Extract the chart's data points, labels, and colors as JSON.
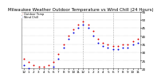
{
  "title": "Milwaukee Weather Outdoor Temperature vs Wind Chill (24 Hours)",
  "title_fontsize": 4.0,
  "background_color": "#ffffff",
  "legend_labels": [
    "Outdoor Temp",
    "Wind Chill"
  ],
  "legend_colors": [
    "#cc0000",
    "#0000cc"
  ],
  "vline_positions": [
    6,
    12,
    18
  ],
  "xlim": [
    -0.5,
    23.5
  ],
  "ylim": [
    20,
    55
  ],
  "ytick_values": [
    20,
    25,
    30,
    35,
    40,
    45,
    50,
    55
  ],
  "temp_x": [
    0,
    1,
    2,
    3,
    4,
    5,
    6,
    7,
    8,
    9,
    10,
    11,
    12,
    13,
    14,
    15,
    16,
    17,
    18,
    19,
    20,
    21,
    22,
    23
  ],
  "temp_y": [
    26,
    24,
    22,
    21,
    21,
    22,
    24,
    29,
    35,
    40,
    44,
    47,
    49,
    47,
    43,
    38,
    36,
    35,
    34,
    34,
    35,
    35,
    37,
    38
  ],
  "wchill_x": [
    0,
    1,
    2,
    3,
    4,
    5,
    6,
    7,
    8,
    9,
    10,
    11,
    12,
    13,
    14,
    15,
    16,
    17,
    18,
    19,
    20,
    21,
    22,
    23
  ],
  "wchill_y": [
    22,
    20,
    19,
    18,
    18,
    19,
    21,
    26,
    33,
    38,
    42,
    45,
    47,
    45,
    40,
    36,
    34,
    33,
    32,
    32,
    33,
    33,
    35,
    36
  ],
  "temp_color": "#dd0000",
  "wchill_color": "#0000dd",
  "marker_size": 2.0,
  "grid_color": "#aaaaaa",
  "grid_linestyle": "--",
  "grid_linewidth": 0.4,
  "tick_fontsize": 3.0,
  "xtick_positions": [
    0,
    1,
    2,
    3,
    4,
    5,
    6,
    7,
    8,
    9,
    10,
    11,
    12,
    13,
    14,
    15,
    16,
    17,
    18,
    19,
    20,
    21,
    22,
    23
  ],
  "xtick_labels": [
    "12",
    "1",
    "2",
    "3",
    "4",
    "5",
    "6",
    "7",
    "8",
    "9",
    "10",
    "11",
    "12",
    "1",
    "2",
    "3",
    "4",
    "5",
    "6",
    "7",
    "8",
    "9",
    "10",
    "11"
  ]
}
